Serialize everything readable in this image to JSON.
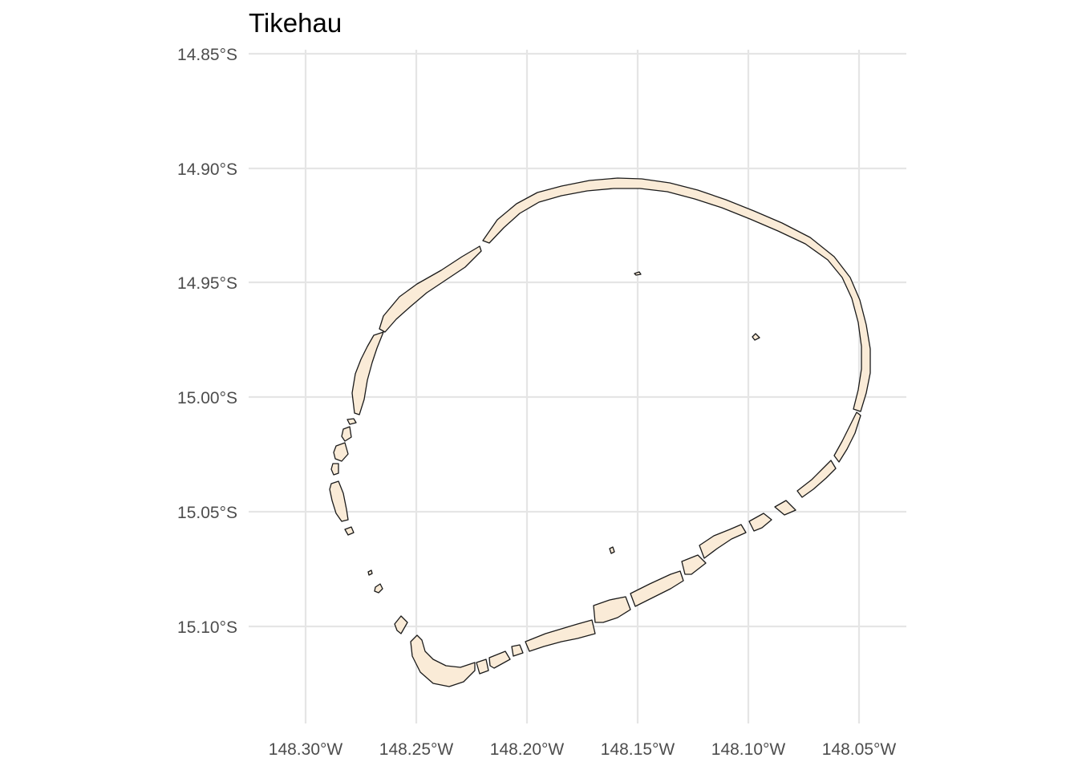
{
  "title": "Tikehau",
  "axes": {
    "x": {
      "ticks": [
        -148.3,
        -148.25,
        -148.2,
        -148.15,
        -148.1,
        -148.05
      ],
      "tick_labels": [
        "148.30°W",
        "148.25°W",
        "148.20°W",
        "148.15°W",
        "148.10°W",
        "148.05°W"
      ]
    },
    "y": {
      "ticks": [
        -14.85,
        -14.9,
        -14.95,
        -15.0,
        -15.05,
        -15.1
      ],
      "tick_labels": [
        "14.85°S",
        "14.90°S",
        "14.95°S",
        "15.00°S",
        "15.05°S",
        "15.10°S"
      ]
    }
  },
  "style": {
    "land_fill": "#faebd7",
    "land_stroke": "#1a1a1a",
    "background": "#ffffff",
    "grid": true
  }
}
